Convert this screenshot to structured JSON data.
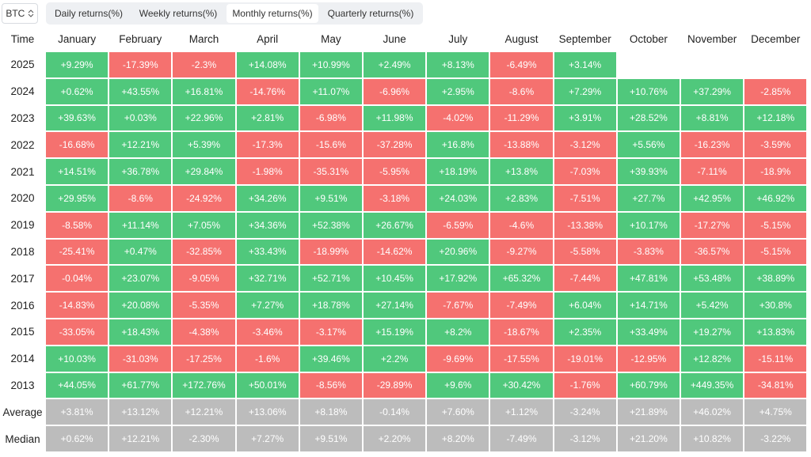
{
  "toolbar": {
    "asset": "BTC",
    "tabs": [
      "Daily returns(%)",
      "Weekly returns(%)",
      "Monthly returns(%)",
      "Quarterly returns(%)"
    ],
    "active_tab": 2
  },
  "colors": {
    "up": "#50c87c",
    "down": "#f5716f",
    "summary": "#bcbcbc",
    "text": "#ffffff"
  },
  "table": {
    "header": [
      "Time",
      "January",
      "February",
      "March",
      "April",
      "May",
      "June",
      "July",
      "August",
      "September",
      "October",
      "November",
      "December"
    ],
    "rows": [
      [
        "2025",
        "+9.29%",
        "-17.39%",
        "-2.3%",
        "+14.08%",
        "+10.99%",
        "+2.49%",
        "+8.13%",
        "-6.49%",
        "+3.14%"
      ],
      [
        "2024",
        "+0.62%",
        "+43.55%",
        "+16.81%",
        "-14.76%",
        "+11.07%",
        "-6.96%",
        "+2.95%",
        "-8.6%",
        "+7.29%",
        "+10.76%",
        "+37.29%",
        "-2.85%"
      ],
      [
        "2023",
        "+39.63%",
        "+0.03%",
        "+22.96%",
        "+2.81%",
        "-6.98%",
        "+11.98%",
        "-4.02%",
        "-11.29%",
        "+3.91%",
        "+28.52%",
        "+8.81%",
        "+12.18%"
      ],
      [
        "2022",
        "-16.68%",
        "+12.21%",
        "+5.39%",
        "-17.3%",
        "-15.6%",
        "-37.28%",
        "+16.8%",
        "-13.88%",
        "-3.12%",
        "+5.56%",
        "-16.23%",
        "-3.59%"
      ],
      [
        "2021",
        "+14.51%",
        "+36.78%",
        "+29.84%",
        "-1.98%",
        "-35.31%",
        "-5.95%",
        "+18.19%",
        "+13.8%",
        "-7.03%",
        "+39.93%",
        "-7.11%",
        "-18.9%"
      ],
      [
        "2020",
        "+29.95%",
        "-8.6%",
        "-24.92%",
        "+34.26%",
        "+9.51%",
        "-3.18%",
        "+24.03%",
        "+2.83%",
        "-7.51%",
        "+27.7%",
        "+42.95%",
        "+46.92%"
      ],
      [
        "2019",
        "-8.58%",
        "+11.14%",
        "+7.05%",
        "+34.36%",
        "+52.38%",
        "+26.67%",
        "-6.59%",
        "-4.6%",
        "-13.38%",
        "+10.17%",
        "-17.27%",
        "-5.15%"
      ],
      [
        "2018",
        "-25.41%",
        "+0.47%",
        "-32.85%",
        "+33.43%",
        "-18.99%",
        "-14.62%",
        "+20.96%",
        "-9.27%",
        "-5.58%",
        "-3.83%",
        "-36.57%",
        "-5.15%"
      ],
      [
        "2017",
        "-0.04%",
        "+23.07%",
        "-9.05%",
        "+32.71%",
        "+52.71%",
        "+10.45%",
        "+17.92%",
        "+65.32%",
        "-7.44%",
        "+47.81%",
        "+53.48%",
        "+38.89%"
      ],
      [
        "2016",
        "-14.83%",
        "+20.08%",
        "-5.35%",
        "+7.27%",
        "+18.78%",
        "+27.14%",
        "-7.67%",
        "-7.49%",
        "+6.04%",
        "+14.71%",
        "+5.42%",
        "+30.8%"
      ],
      [
        "2015",
        "-33.05%",
        "+18.43%",
        "-4.38%",
        "-3.46%",
        "-3.17%",
        "+15.19%",
        "+8.2%",
        "-18.67%",
        "+2.35%",
        "+33.49%",
        "+19.27%",
        "+13.83%"
      ],
      [
        "2014",
        "+10.03%",
        "-31.03%",
        "-17.25%",
        "-1.6%",
        "+39.46%",
        "+2.2%",
        "-9.69%",
        "-17.55%",
        "-19.01%",
        "-12.95%",
        "+12.82%",
        "-15.11%"
      ],
      [
        "2013",
        "+44.05%",
        "+61.77%",
        "+172.76%",
        "+50.01%",
        "-8.56%",
        "-29.89%",
        "+9.6%",
        "+30.42%",
        "-1.76%",
        "+60.79%",
        "+449.35%",
        "-34.81%"
      ]
    ],
    "summary": [
      [
        "Average",
        "+3.81%",
        "+13.12%",
        "+12.21%",
        "+13.06%",
        "+8.18%",
        "-0.14%",
        "+7.60%",
        "+1.12%",
        "-3.24%",
        "+21.89%",
        "+46.02%",
        "+4.75%"
      ],
      [
        "Median",
        "+0.62%",
        "+12.21%",
        "-2.30%",
        "+7.27%",
        "+9.51%",
        "+2.20%",
        "+8.20%",
        "-7.49%",
        "-3.12%",
        "+21.20%",
        "+10.82%",
        "-3.22%"
      ]
    ]
  }
}
